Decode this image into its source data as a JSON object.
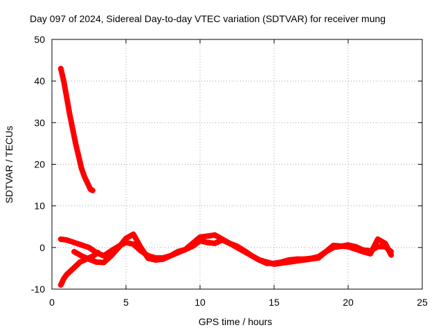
{
  "chart_data": {
    "type": "scatter",
    "title": "Day 097 of 2024, Sidereal Day-to-day VTEC variation (SDTVAR) for receiver mung",
    "xlabel": "GPS time / hours",
    "ylabel": "SDTVAR / TECUs",
    "xlim": [
      0,
      25
    ],
    "ylim": [
      -10,
      50
    ],
    "xticks": [
      0,
      5,
      10,
      15,
      20,
      25
    ],
    "yticks": [
      -10,
      0,
      10,
      20,
      30,
      40,
      50
    ],
    "grid": true,
    "series": [
      {
        "name": "high-arc",
        "color": "#ff0000",
        "marker": "plus",
        "x": [
          0.6,
          0.8,
          1.0,
          1.2,
          1.4,
          1.6,
          1.8,
          2.0,
          2.2,
          2.4,
          2.6,
          2.75
        ],
        "y": [
          43,
          40,
          36,
          32,
          28.5,
          25,
          22,
          19,
          17,
          15.5,
          14,
          13.7
        ]
      },
      {
        "name": "rising-arc",
        "color": "#ff0000",
        "marker": "plus",
        "x": [
          0.6,
          0.8,
          1.0,
          1.3,
          1.6,
          1.9,
          2.2,
          2.5,
          2.8,
          3.0,
          3.1
        ],
        "y": [
          -9,
          -7.5,
          -6.5,
          -5.5,
          -4.5,
          -3.5,
          -3.0,
          -2.5,
          -2.0,
          -1.5,
          -1.2
        ]
      },
      {
        "name": "main",
        "color": "#ff0000",
        "marker": "plus",
        "x": [
          0.6,
          1.0,
          1.5,
          2.0,
          2.5,
          3.0,
          3.5,
          4.0,
          4.5,
          5.0,
          5.5,
          6.0,
          6.5,
          7.0,
          7.5,
          8.0,
          8.5,
          9.0,
          9.5,
          10.0,
          10.5,
          11.0,
          11.5,
          12.0,
          12.5,
          13.0,
          13.5,
          14.0,
          14.5,
          15.0,
          15.5,
          16.0,
          16.5,
          17.0,
          17.5,
          18.0,
          18.5,
          19.0,
          19.5,
          20.0,
          20.5,
          21.0,
          21.5,
          22.0,
          22.5,
          22.9
        ],
        "y": [
          2.0,
          1.8,
          1.2,
          0.6,
          0.0,
          -1.2,
          -2.0,
          -0.8,
          0.3,
          1.2,
          0.8,
          -0.8,
          -2.0,
          -2.5,
          -2.5,
          -2.0,
          -1.0,
          -0.5,
          0.3,
          1.6,
          1.2,
          1.0,
          1.8,
          1.0,
          0.3,
          -0.8,
          -2.0,
          -3.0,
          -3.8,
          -3.8,
          -3.5,
          -3.0,
          -2.8,
          -2.8,
          -2.6,
          -2.2,
          -1.0,
          0.0,
          0.3,
          0.6,
          0.2,
          -0.6,
          -0.8,
          0.2,
          0.2,
          -1.0
        ]
      },
      {
        "name": "secondary",
        "color": "#ff0000",
        "marker": "plus",
        "x": [
          1.5,
          2.0,
          2.5,
          3.0,
          3.5,
          4.0,
          4.5,
          5.0,
          5.5,
          6.0,
          6.5,
          7.0,
          7.5,
          8.0,
          9.0,
          10.0,
          11.0,
          12.0,
          13.0,
          14.0,
          15.0,
          16.0,
          17.0,
          18.0,
          19.0,
          20.0,
          21.0,
          21.5,
          22.0,
          22.5,
          22.9
        ],
        "y": [
          -1.0,
          -2.0,
          -2.8,
          -3.5,
          -3.6,
          -2.0,
          0.0,
          2.2,
          3.2,
          0.0,
          -2.6,
          -3.0,
          -2.8,
          -2.0,
          -0.5,
          2.5,
          3.0,
          1.0,
          -1.0,
          -3.0,
          -4.0,
          -3.5,
          -3.0,
          -2.5,
          0.5,
          0.2,
          -1.0,
          -1.5,
          2.0,
          1.0,
          -1.8
        ]
      }
    ]
  }
}
